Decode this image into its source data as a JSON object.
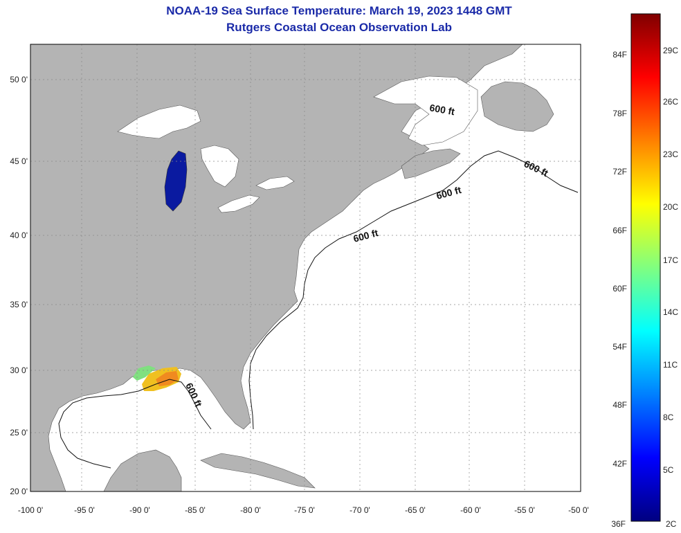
{
  "header": {
    "title_line1": "NOAA-19 Sea Surface Temperature:  March 19, 2023 1448 GMT",
    "title_line2": "Rutgers Coastal Ocean Observation Lab"
  },
  "map": {
    "lon_ticks": [
      "-100 0'",
      "-95 0'",
      "-90 0'",
      "-85 0'",
      "-80 0'",
      "-75 0'",
      "-70 0'",
      "-65 0'",
      "-60 0'",
      "-55 0'",
      "-50 0'"
    ],
    "lat_ticks": [
      "50 0'",
      "45 0'",
      "40 0'",
      "35 0'",
      "30 0'",
      "25 0'",
      "20 0'"
    ],
    "contour_label": "600 ft",
    "land_color": "#b4b4b4",
    "ocean_color": "#ffffff"
  },
  "colorbar": {
    "fahrenheit_labels": [
      "84F",
      "78F",
      "72F",
      "66F",
      "60F",
      "54F",
      "48F",
      "42F",
      "36F"
    ],
    "celsius_labels": [
      "29C",
      "26C",
      "23C",
      "20C",
      "17C",
      "14C",
      "11C",
      "8C",
      "5C",
      "2C"
    ],
    "gradient_stops": [
      "#000080",
      "#0000ff",
      "#0080ff",
      "#00ffff",
      "#80ff80",
      "#ffff00",
      "#ff8000",
      "#ff0000",
      "#800000"
    ]
  }
}
